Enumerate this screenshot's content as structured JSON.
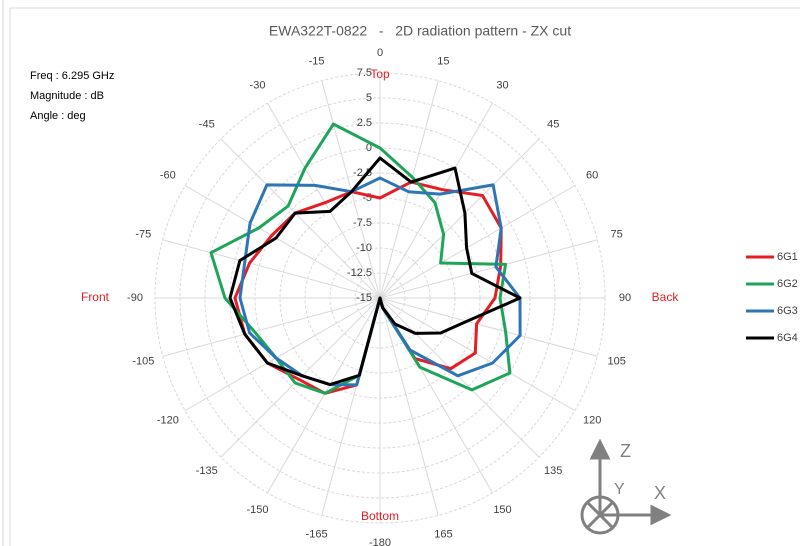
{
  "chart_data": {
    "type": "polar",
    "title": "EWA322T-0822   -   2D radiation pattern - ZX cut",
    "info": [
      "Freq : 6.295 GHz",
      "Magnitude : dB",
      "Angle : deg"
    ],
    "annotations": [
      "Top",
      "Back",
      "Bottom",
      "Front"
    ],
    "axis_icon_labels": [
      "Z",
      "Y",
      "X"
    ],
    "theta": [
      -180,
      -165,
      -150,
      -135,
      -120,
      -105,
      -90,
      -75,
      -60,
      -45,
      -30,
      -15,
      0,
      15,
      30,
      45,
      60,
      75,
      90,
      105,
      120,
      135,
      150,
      165
    ],
    "thetaticks": [
      -180,
      -165,
      -150,
      -135,
      -120,
      -105,
      -90,
      -75,
      -60,
      -45,
      -30,
      -15,
      0,
      15,
      30,
      45,
      60,
      75,
      90,
      105,
      120,
      135,
      150,
      165
    ],
    "rlim": [
      -15,
      7.5
    ],
    "rticks": [
      -15,
      -12.5,
      -10,
      -7.5,
      -5,
      -2.5,
      0,
      2.5,
      5,
      7.5
    ],
    "grid": true,
    "legend": "right",
    "series": [
      {
        "name": "6G1",
        "color": "#e31e25",
        "values": [
          -15,
          -6,
          -4,
          -3.5,
          -2,
          -1,
          -0.5,
          -1.5,
          -2.5,
          -3,
          -4,
          -4,
          -5,
          -3,
          -2.5,
          -0.5,
          -1,
          -2.5,
          -3.5,
          -5,
          -4,
          -5,
          -8,
          -14
        ]
      },
      {
        "name": "6G2",
        "color": "#1fa55a",
        "values": [
          -15,
          -7,
          -4,
          -3,
          -3,
          -2,
          0.5,
          2.5,
          -1,
          -2,
          0,
          3,
          0,
          -2.5,
          -4,
          -6,
          -8,
          -2,
          -3,
          -2,
          0,
          -2,
          -7,
          -14
        ]
      },
      {
        "name": "6G3",
        "color": "#2e75b6",
        "values": [
          -15,
          -6,
          -5,
          -4,
          -3,
          -1.5,
          -1,
          -1,
          0,
          1,
          -2,
          -4,
          -3,
          -4,
          -3,
          1,
          -1,
          -3,
          -1,
          -0.5,
          -2,
          -4,
          -9,
          -14
        ]
      },
      {
        "name": "6G4",
        "color": "#000000",
        "values": [
          -15,
          -7,
          -5,
          -4,
          -2,
          -1,
          0,
          -0.5,
          -3,
          -3,
          -5,
          -4,
          -1,
          -3,
          0,
          -3,
          -5,
          -5.5,
          -1,
          -6,
          -8,
          -10,
          -12,
          -14
        ]
      }
    ]
  }
}
